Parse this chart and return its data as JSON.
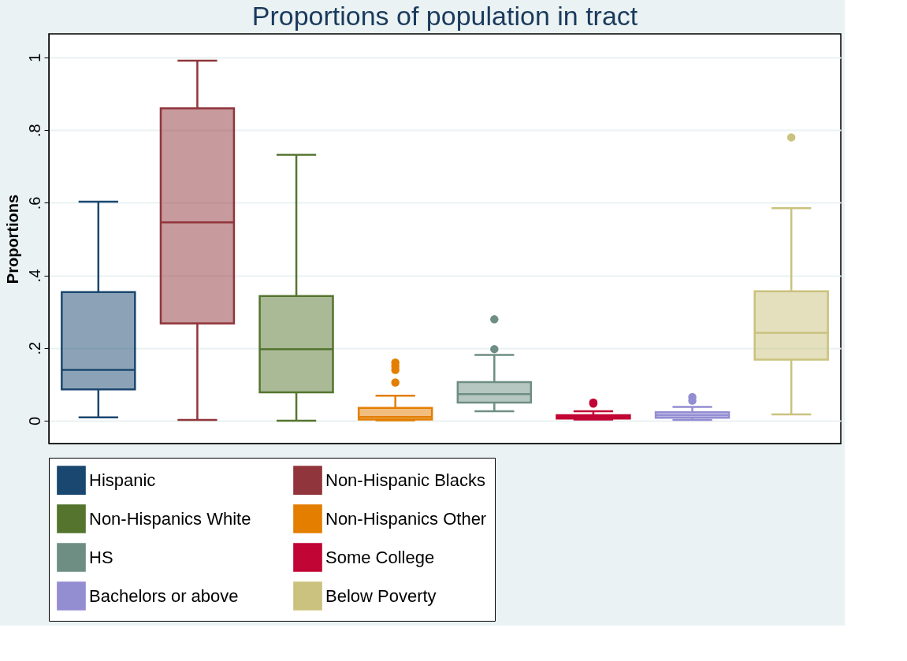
{
  "chart_data": {
    "type": "box",
    "title": "Proportions of population in tract",
    "ylabel": "Proportions",
    "categories": [
      null,
      null,
      null,
      null,
      null,
      null,
      null,
      null
    ],
    "ylim": [
      -0.063,
      1.065
    ],
    "yticks": [
      0,
      {
        "value": 0.2,
        "label": ".2"
      },
      {
        "value": 0.4,
        "label": ".4"
      },
      {
        "value": 0.6,
        "label": ".6"
      },
      {
        "value": 0.8,
        "label": ".8"
      },
      1
    ],
    "grid": "y",
    "legend": "bottom",
    "tick_labels": "y",
    "series": [
      {
        "name": "Hispanic",
        "color": "#1a476f",
        "boxes": [
          {
            "low": 0.009,
            "q1": 0.086,
            "median": 0.14,
            "q3": 0.354,
            "high": 0.603
          },
          null,
          null,
          null,
          null,
          null,
          null,
          null
        ]
      },
      {
        "name": "Non-Hispanic Blacks",
        "color": "#90353b",
        "boxes": [
          null,
          {
            "low": 0.002,
            "q1": 0.268,
            "median": 0.546,
            "q3": 0.86,
            "high": 0.991
          },
          null,
          null,
          null,
          null,
          null,
          null
        ]
      },
      {
        "name": "Non-Hispanics White",
        "color": "#55752f",
        "boxes": [
          null,
          null,
          {
            "low": 0.0,
            "q1": 0.078,
            "median": 0.197,
            "q3": 0.343,
            "high": 0.732
          },
          null,
          null,
          null,
          null,
          null
        ]
      },
      {
        "name": "Non-Hispanics Other",
        "color": "#e37e00",
        "boxes": [
          null,
          null,
          null,
          {
            "low": 0.001,
            "q1": 0.003,
            "median": 0.01,
            "q3": 0.035,
            "high": 0.069,
            "outliers": [
              0.105,
              0.14,
              0.15,
              0.16
            ]
          },
          null,
          null,
          null,
          null
        ]
      },
      {
        "name": "HS",
        "color": "#6e8e84",
        "boxes": [
          null,
          null,
          null,
          null,
          {
            "low": 0.026,
            "q1": 0.05,
            "median": 0.073,
            "q3": 0.106,
            "high": 0.181,
            "outliers": [
              0.197,
              0.279
            ]
          },
          null,
          null,
          null
        ]
      },
      {
        "name": "Some College",
        "color": "#c10534",
        "boxes": [
          null,
          null,
          null,
          null,
          null,
          {
            "low": 0.003,
            "q1": 0.006,
            "median": 0.01,
            "q3": 0.015,
            "high": 0.026,
            "outliers": [
              0.047,
              0.05
            ]
          },
          null,
          null
        ]
      },
      {
        "name": "Bachelors or above",
        "color": "#938dd2",
        "boxes": [
          null,
          null,
          null,
          null,
          null,
          null,
          {
            "low": 0.002,
            "q1": 0.008,
            "median": 0.015,
            "q3": 0.023,
            "high": 0.038,
            "outliers": [
              0.055,
              0.065
            ]
          },
          null
        ]
      },
      {
        "name": "Below Poverty",
        "color": "#cac27e",
        "boxes": [
          null,
          null,
          null,
          null,
          null,
          null,
          null,
          {
            "low": 0.017,
            "q1": 0.168,
            "median": 0.242,
            "q3": 0.356,
            "high": 0.585,
            "outliers": [
              0.78
            ]
          }
        ]
      }
    ]
  }
}
